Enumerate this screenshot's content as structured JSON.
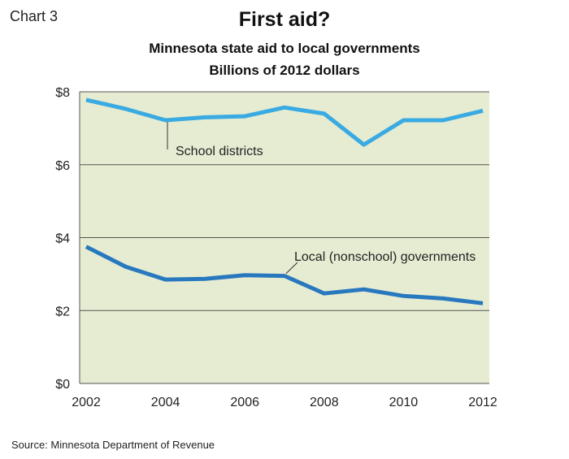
{
  "header": {
    "chart_number": "Chart 3",
    "title": "First aid?",
    "subtitle": "Minnesota state aid to local governments",
    "units": "Billions of 2012 dollars"
  },
  "footer": {
    "source": "Source: Minnesota Department of Revenue"
  },
  "colors": {
    "plot_background": "#e6ecd2",
    "gridline": "#555555",
    "school_line": "#3aaae2",
    "local_line": "#2878bf"
  },
  "chart_data": {
    "type": "line",
    "title": "First aid?",
    "subtitle": "Minnesota state aid to local governments",
    "ylabel": "Billions of 2012 dollars",
    "x": [
      2002,
      2003,
      2004,
      2005,
      2006,
      2007,
      2008,
      2009,
      2010,
      2011,
      2012
    ],
    "x_ticks": [
      "2002",
      "2004",
      "2006",
      "2008",
      "2010",
      "2012"
    ],
    "y_ticks": [
      "$0",
      "$2",
      "$4",
      "$6",
      "$8"
    ],
    "ylim": [
      0,
      8
    ],
    "grid": true,
    "series": [
      {
        "name": "School districts",
        "values": [
          7.78,
          7.53,
          7.22,
          7.3,
          7.33,
          7.57,
          7.4,
          6.55,
          7.22,
          7.22,
          7.48
        ]
      },
      {
        "name": "Local (nonschool) governments",
        "values": [
          3.75,
          3.2,
          2.85,
          2.87,
          2.97,
          2.95,
          2.47,
          2.58,
          2.4,
          2.33,
          2.2
        ]
      }
    ]
  }
}
